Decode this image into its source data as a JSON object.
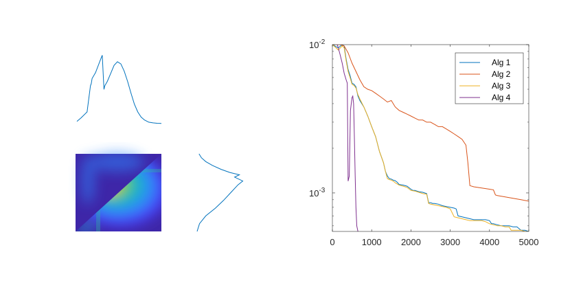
{
  "chart_data": [
    {
      "type": "line",
      "panel": "top-left marginal",
      "x": [
        0,
        5,
        12,
        16,
        17,
        18,
        22,
        28,
        30,
        32,
        33,
        36,
        40,
        44,
        48,
        52,
        56,
        60,
        64,
        68,
        72,
        76,
        80,
        85,
        90,
        95,
        100
      ],
      "values": [
        0.03,
        0.08,
        0.16,
        0.52,
        0.55,
        0.62,
        0.7,
        0.88,
        0.94,
        0.47,
        0.52,
        0.58,
        0.69,
        0.8,
        0.85,
        0.82,
        0.72,
        0.58,
        0.42,
        0.27,
        0.16,
        0.09,
        0.05,
        0.02,
        0.01,
        0.005,
        0.003
      ],
      "color": "#0072BD",
      "grid": false
    },
    {
      "type": "heatmap",
      "panel": "joint density",
      "colormap": [
        "#3E26A8",
        "#4743F8",
        "#2E85FB",
        "#1AA8D6",
        "#2CBF9E",
        "#80CA55",
        "#D4BB3F",
        "#FCCD38"
      ],
      "background_color": "#3E26A8",
      "grid": false
    },
    {
      "type": "line",
      "panel": "right marginal (rotated)",
      "y": [
        0,
        10,
        20,
        30,
        40,
        50,
        60,
        65,
        70,
        73,
        76,
        80,
        85,
        90,
        95,
        100
      ],
      "values": [
        0.0,
        0.05,
        0.18,
        0.38,
        0.55,
        0.7,
        0.85,
        0.95,
        0.78,
        0.88,
        0.68,
        0.5,
        0.32,
        0.18,
        0.09,
        0.04
      ],
      "color": "#0072BD",
      "grid": false
    },
    {
      "type": "line",
      "panel": "convergence",
      "x_scale": "linear",
      "y_scale": "log",
      "xlim": [
        0,
        5000
      ],
      "ylim": [
        0.00055,
        0.01
      ],
      "xticks": [
        "0",
        "1000",
        "2000",
        "3000",
        "4000",
        "5000"
      ],
      "yticks": [
        "10",
        "10"
      ],
      "ytick_exponents": [
        "-2",
        "-3"
      ],
      "legend_position": "top-right",
      "grid": false,
      "series": [
        {
          "name": "Alg 1",
          "color": "#0072BD",
          "x": [
            0,
            150,
            250,
            300,
            350,
            400,
            450,
            500,
            550,
            600,
            650,
            700,
            800,
            900,
            1000,
            1100,
            1200,
            1300,
            1350,
            1400,
            1450,
            1500,
            1550,
            1600,
            1650,
            1700,
            1800,
            1900,
            2000,
            2050,
            2100,
            2200,
            2300,
            2400,
            2450,
            2500,
            2550,
            2600,
            2700,
            2800,
            2900,
            3000,
            3100,
            3150,
            3200,
            3300,
            3400,
            3500,
            3600,
            3700,
            3800,
            3900,
            4000,
            4050,
            4100,
            4200,
            4300,
            4400,
            4500,
            4600,
            4700,
            4800,
            4900,
            5000
          ],
          "values": [
            0.01,
            0.0095,
            0.01,
            0.0098,
            0.008,
            0.0068,
            0.0062,
            0.0055,
            0.0054,
            0.0052,
            0.0045,
            0.0042,
            0.0038,
            0.0033,
            0.0028,
            0.0024,
            0.0019,
            0.0016,
            0.0014,
            0.0013,
            0.00125,
            0.00124,
            0.00122,
            0.00121,
            0.00118,
            0.00114,
            0.00113,
            0.00111,
            0.00106,
            0.00104,
            0.00104,
            0.00102,
            0.00101,
            0.00099,
            0.00086,
            0.00086,
            0.00085,
            0.00085,
            0.00084,
            0.00082,
            0.00081,
            0.0008,
            0.00079,
            0.00078,
            0.0007,
            0.00069,
            0.00068,
            0.00067,
            0.00066,
            0.00066,
            0.00066,
            0.00066,
            0.00065,
            0.00062,
            0.00062,
            0.00061,
            0.0006,
            0.0006,
            0.0006,
            0.00059,
            0.00059,
            0.00056,
            0.00056,
            0.00055
          ]
        },
        {
          "name": "Alg 2",
          "color": "#D95319",
          "x": [
            0,
            200,
            300,
            400,
            500,
            600,
            700,
            800,
            900,
            1000,
            1100,
            1200,
            1300,
            1400,
            1500,
            1600,
            1700,
            1800,
            1900,
            2000,
            2100,
            2200,
            2300,
            2400,
            2500,
            2600,
            2700,
            2800,
            2900,
            3000,
            3100,
            3200,
            3300,
            3400,
            3450,
            3500,
            3600,
            3700,
            3800,
            3900,
            4000,
            4100,
            4150,
            4200,
            4300,
            4400,
            4500,
            4600,
            4700,
            4800,
            4900,
            5000
          ],
          "values": [
            0.01,
            0.01,
            0.0098,
            0.0088,
            0.0075,
            0.0066,
            0.0058,
            0.0052,
            0.005,
            0.0049,
            0.0047,
            0.0045,
            0.0043,
            0.0041,
            0.0042,
            0.0038,
            0.0036,
            0.0035,
            0.0034,
            0.0033,
            0.0032,
            0.0031,
            0.0031,
            0.003,
            0.003,
            0.0029,
            0.0028,
            0.0028,
            0.0027,
            0.0026,
            0.0025,
            0.0024,
            0.0023,
            0.0021,
            0.0016,
            0.00112,
            0.0011,
            0.00109,
            0.00108,
            0.00107,
            0.00106,
            0.00105,
            0.00097,
            0.00096,
            0.00095,
            0.00094,
            0.00093,
            0.00092,
            0.00091,
            0.0009,
            0.00089,
            0.00088
          ]
        },
        {
          "name": "Alg 3",
          "color": "#EDB120",
          "x": [
            0,
            150,
            250,
            300,
            350,
            400,
            450,
            500,
            550,
            600,
            650,
            700,
            800,
            900,
            1000,
            1100,
            1200,
            1300,
            1350,
            1400,
            1450,
            1500,
            1550,
            1600,
            1700,
            1800,
            1900,
            2000,
            2100,
            2200,
            2300,
            2400,
            2450,
            2500,
            2600,
            2700,
            2800,
            2900,
            3000,
            3100,
            3200,
            3300,
            3400,
            3500,
            3600,
            3700,
            3800,
            3900,
            4000,
            4100,
            4200,
            4300,
            4400,
            4500,
            4550,
            4600,
            4700,
            4800,
            4900,
            5000
          ],
          "values": [
            0.01,
            0.0092,
            0.0098,
            0.0095,
            0.0078,
            0.0066,
            0.006,
            0.0054,
            0.0053,
            0.0051,
            0.0046,
            0.0043,
            0.0038,
            0.0033,
            0.0028,
            0.0024,
            0.0019,
            0.0016,
            0.0014,
            0.00125,
            0.00123,
            0.00122,
            0.0012,
            0.00117,
            0.00113,
            0.00111,
            0.00109,
            0.00104,
            0.00103,
            0.00101,
            0.00099,
            0.00098,
            0.00085,
            0.00084,
            0.00083,
            0.00082,
            0.00081,
            0.0008,
            0.00078,
            0.00069,
            0.00068,
            0.00067,
            0.00066,
            0.00065,
            0.00065,
            0.00065,
            0.00065,
            0.00064,
            0.00062,
            0.00061,
            0.0006,
            0.0006,
            0.00059,
            0.00059,
            0.00056,
            0.00056,
            0.00056,
            0.00056,
            0.00055,
            0.00055
          ]
        },
        {
          "name": "Alg 4",
          "color": "#7E2F8E",
          "x": [
            100,
            150,
            200,
            250,
            300,
            350,
            380,
            400,
            430,
            460,
            480,
            500,
            520,
            540,
            560,
            580,
            600,
            620,
            650,
            680
          ],
          "values": [
            0.0105,
            0.0095,
            0.0085,
            0.0075,
            0.0064,
            0.0058,
            0.0055,
            0.0012,
            0.0013,
            0.0036,
            0.004,
            0.0044,
            0.0045,
            0.004,
            0.0024,
            0.0013,
            0.0008,
            0.0006,
            0.00055,
            0.0004
          ]
        }
      ]
    }
  ]
}
